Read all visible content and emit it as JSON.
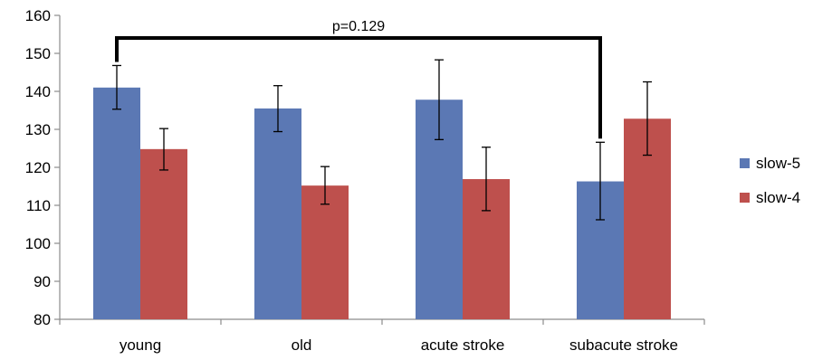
{
  "chart_data": {
    "type": "bar",
    "categories": [
      "young",
      "old",
      "acute stroke",
      "subacute stroke"
    ],
    "series": [
      {
        "name": "slow-5",
        "color": "#5B78B4",
        "values": [
          141,
          135.5,
          137.8,
          116.3
        ],
        "err_low": [
          135.3,
          129.4,
          127.3,
          106.2
        ],
        "err_high": [
          146.8,
          141.5,
          148.3,
          126.6
        ]
      },
      {
        "name": "slow-4",
        "color": "#BE504D",
        "values": [
          124.8,
          115.2,
          116.9,
          132.8
        ],
        "err_low": [
          119.3,
          110.3,
          108.6,
          123.2
        ],
        "err_high": [
          130.2,
          120.2,
          125.3,
          142.5
        ]
      }
    ],
    "ylim": [
      80,
      160
    ],
    "yticks": [
      80,
      90,
      100,
      110,
      120,
      130,
      140,
      150,
      160
    ],
    "grid": false,
    "legend": "right",
    "annotations": [
      {
        "type": "bracket",
        "from_category": "young",
        "to_category": "subacute stroke",
        "label": "p=0.129"
      }
    ]
  }
}
